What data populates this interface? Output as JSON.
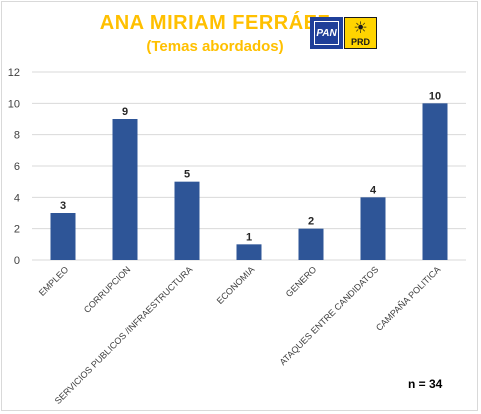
{
  "chart_data": {
    "type": "bar",
    "title": "ANA MIRIAM FERRÁEZ",
    "subtitle": "(Temas abordados)",
    "categories": [
      "EMPLEO",
      "CORRUPCION",
      "SERVICIOS PUBLICOS /INFRAESTRUCTURA",
      "ECONOMIA",
      "GENERO",
      "ATAQUES ENTRE CANDIDATOS",
      "CAMPAÑA POLITICA"
    ],
    "values": [
      3,
      9,
      5,
      1,
      2,
      4,
      10
    ],
    "ylim": [
      0,
      12
    ],
    "yticks": [
      "0",
      "2",
      "4",
      "6",
      "8",
      "10",
      "12"
    ],
    "xlabel": "",
    "ylabel": "",
    "grid": true,
    "bar_color": "#2e5597",
    "annotation": "n = 34"
  },
  "logos": {
    "pan": "PAN",
    "prd": "PRD"
  },
  "colors": {
    "title": "#ffc000",
    "grid": "#d9d9d9"
  }
}
